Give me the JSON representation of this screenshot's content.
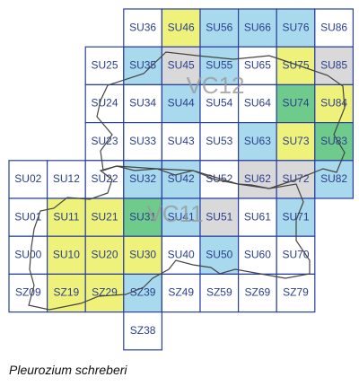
{
  "map": {
    "cells": [
      {
        "label": "SU36",
        "color": "#ffffff"
      },
      {
        "label": "SU46",
        "color": "#eef27a"
      },
      {
        "label": "SU56",
        "color": "#a9d9ec"
      },
      {
        "label": "SU66",
        "color": "#a9d9ec"
      },
      {
        "label": "SU76",
        "color": "#a9d9ec"
      },
      {
        "label": "SU86",
        "color": "#ffffff"
      },
      {
        "label": "SU25",
        "color": "#ffffff"
      },
      {
        "label": "SU35",
        "color": "#a9d9ec"
      },
      {
        "label": "SU45",
        "color": "#d9d9d9"
      },
      {
        "label": "SU55",
        "color": "#a9d9ec"
      },
      {
        "label": "SU65",
        "color": "#ffffff"
      },
      {
        "label": "SU75",
        "color": "#eef27a"
      },
      {
        "label": "SU85",
        "color": "#d9d9d9"
      },
      {
        "label": "SU24",
        "color": "#ffffff"
      },
      {
        "label": "SU34",
        "color": "#ffffff"
      },
      {
        "label": "SU44",
        "color": "#a9d9ec"
      },
      {
        "label": "SU54",
        "color": "#ffffff"
      },
      {
        "label": "SU64",
        "color": "#ffffff"
      },
      {
        "label": "SU74",
        "color": "#6fcb8c"
      },
      {
        "label": "SU84",
        "color": "#eef27a"
      },
      {
        "label": "SU23",
        "color": "#ffffff"
      },
      {
        "label": "SU33",
        "color": "#ffffff"
      },
      {
        "label": "SU43",
        "color": "#ffffff"
      },
      {
        "label": "SU53",
        "color": "#ffffff"
      },
      {
        "label": "SU63",
        "color": "#a9d9ec"
      },
      {
        "label": "SU73",
        "color": "#eef27a"
      },
      {
        "label": "SU83",
        "color": "#6fcb8c"
      },
      {
        "label": "SU02",
        "color": "#ffffff"
      },
      {
        "label": "SU12",
        "color": "#ffffff"
      },
      {
        "label": "SU22",
        "color": "#ffffff"
      },
      {
        "label": "SU32",
        "color": "#a9d9ec"
      },
      {
        "label": "SU42",
        "color": "#a9d9ec"
      },
      {
        "label": "SU52",
        "color": "#ffffff"
      },
      {
        "label": "SU62",
        "color": "#d9d9d9"
      },
      {
        "label": "SU72",
        "color": "#d9d9d9"
      },
      {
        "label": "SU82",
        "color": "#a9d9ec"
      },
      {
        "label": "SU01",
        "color": "#ffffff"
      },
      {
        "label": "SU11",
        "color": "#eef27a"
      },
      {
        "label": "SU21",
        "color": "#eef27a"
      },
      {
        "label": "SU31",
        "color": "#6fcb8c"
      },
      {
        "label": "SU41",
        "color": "#a9d9ec"
      },
      {
        "label": "SU51",
        "color": "#d9d9d9"
      },
      {
        "label": "SU61",
        "color": "#ffffff"
      },
      {
        "label": "SU71",
        "color": "#a9d9ec"
      },
      {
        "label": "SU00",
        "color": "#ffffff"
      },
      {
        "label": "SU10",
        "color": "#eef27a"
      },
      {
        "label": "SU20",
        "color": "#eef27a"
      },
      {
        "label": "SU30",
        "color": "#eef27a"
      },
      {
        "label": "SU40",
        "color": "#ffffff"
      },
      {
        "label": "SU50",
        "color": "#a9d9ec"
      },
      {
        "label": "SU60",
        "color": "#ffffff"
      },
      {
        "label": "SU70",
        "color": "#ffffff"
      },
      {
        "label": "SZ09",
        "color": "#ffffff"
      },
      {
        "label": "SZ19",
        "color": "#eef27a"
      },
      {
        "label": "SZ29",
        "color": "#eef27a"
      },
      {
        "label": "SZ39",
        "color": "#a9d9ec"
      },
      {
        "label": "SZ49",
        "color": "#ffffff"
      },
      {
        "label": "SZ59",
        "color": "#ffffff"
      },
      {
        "label": "SZ69",
        "color": "#ffffff"
      },
      {
        "label": "SZ79",
        "color": "#ffffff"
      },
      {
        "label": "SZ38",
        "color": "#ffffff"
      }
    ],
    "regions": [
      "VC12",
      "VC11"
    ],
    "caption": "Pleurozium schreberi"
  }
}
